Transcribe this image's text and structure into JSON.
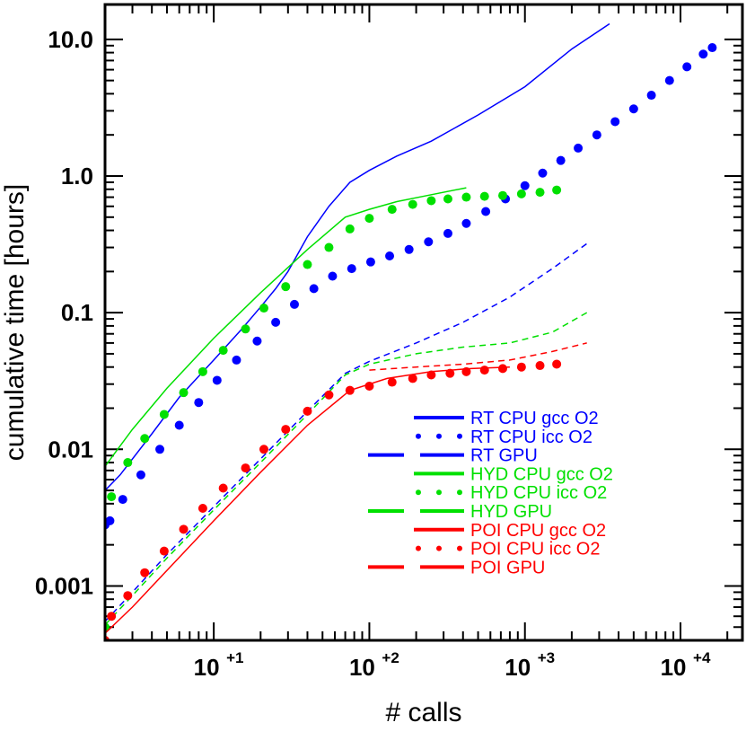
{
  "chart_data": {
    "type": "line",
    "title": "",
    "xlabel": "# calls",
    "ylabel": "cumulative time [hours]",
    "xscale": "log",
    "yscale": "log",
    "xlim": [
      2,
      25000
    ],
    "ylim": [
      0.0004,
      18
    ],
    "x_ticks": [
      {
        "value": 10,
        "label": "10",
        "exp": "+1"
      },
      {
        "value": 100,
        "label": "10",
        "exp": "+2"
      },
      {
        "value": 1000,
        "label": "10",
        "exp": "+3"
      },
      {
        "value": 10000,
        "label": "10",
        "exp": "+4"
      }
    ],
    "y_ticks": [
      {
        "value": 0.001,
        "label": "0.001"
      },
      {
        "value": 0.01,
        "label": "0.01"
      },
      {
        "value": 0.1,
        "label": "0.1"
      },
      {
        "value": 1,
        "label": "1.0"
      },
      {
        "value": 10,
        "label": "10.0"
      }
    ],
    "legend_position": "bottom-right",
    "colors": {
      "RT": "#0000ff",
      "HYD": "#00e000",
      "POI": "#ff0000"
    },
    "series": [
      {
        "name": "RT CPU gcc O2",
        "color": "#0000ff",
        "style": "solid",
        "x": [
          2,
          2.5,
          4,
          6,
          10,
          15,
          20,
          25,
          30,
          40,
          55,
          75,
          100,
          150,
          250,
          500,
          1000,
          2000,
          3500
        ],
        "y": [
          0.005,
          0.0065,
          0.013,
          0.024,
          0.045,
          0.075,
          0.11,
          0.15,
          0.2,
          0.36,
          0.6,
          0.9,
          1.1,
          1.4,
          1.8,
          2.8,
          4.5,
          8.5,
          13
        ]
      },
      {
        "name": "RT CPU icc O2",
        "color": "#0000ff",
        "style": "dotted",
        "x": [
          2,
          2.15,
          2.6,
          3.4,
          4.5,
          6,
          8,
          10.5,
          14,
          19,
          25,
          33,
          44,
          58,
          77,
          102,
          135,
          180,
          240,
          320,
          420,
          560,
          750,
          1000,
          1300,
          1700,
          2200,
          2900,
          3800,
          5000,
          6500,
          8500,
          11000,
          14000,
          16000
        ],
        "y": [
          0.0028,
          0.003,
          0.0043,
          0.0065,
          0.01,
          0.015,
          0.022,
          0.032,
          0.045,
          0.062,
          0.085,
          0.115,
          0.15,
          0.185,
          0.21,
          0.235,
          0.26,
          0.29,
          0.33,
          0.38,
          0.45,
          0.55,
          0.68,
          0.85,
          1.05,
          1.3,
          1.6,
          2.0,
          2.5,
          3.1,
          3.9,
          5.0,
          6.3,
          7.8,
          8.7
        ]
      },
      {
        "name": "RT GPU",
        "color": "#0000ff",
        "style": "dashed",
        "x": [
          2,
          3,
          5,
          10,
          20,
          40,
          70,
          100,
          200,
          400,
          800,
          1500,
          2500
        ],
        "y": [
          0.00055,
          0.0009,
          0.0017,
          0.0038,
          0.0085,
          0.019,
          0.036,
          0.044,
          0.06,
          0.085,
          0.13,
          0.21,
          0.32
        ]
      },
      {
        "name": "HYD CPU gcc O2",
        "color": "#00e000",
        "style": "solid",
        "x": [
          2,
          3,
          5,
          10,
          20,
          40,
          70,
          100,
          150,
          250,
          420
        ],
        "y": [
          0.0075,
          0.014,
          0.028,
          0.065,
          0.14,
          0.29,
          0.5,
          0.57,
          0.65,
          0.73,
          0.82
        ]
      },
      {
        "name": "HYD CPU icc O2",
        "color": "#00e000",
        "style": "dotted",
        "x": [
          2,
          2.2,
          2.8,
          3.6,
          4.8,
          6.4,
          8.5,
          11.5,
          16,
          21,
          29,
          40,
          55,
          75,
          100,
          140,
          190,
          250,
          320,
          420,
          550,
          720,
          950,
          1250,
          1600
        ],
        "y": [
          0.0005,
          0.0045,
          0.008,
          0.012,
          0.018,
          0.026,
          0.037,
          0.053,
          0.076,
          0.108,
          0.155,
          0.225,
          0.3,
          0.41,
          0.49,
          0.57,
          0.62,
          0.66,
          0.68,
          0.7,
          0.71,
          0.72,
          0.74,
          0.76,
          0.79
        ]
      },
      {
        "name": "HYD GPU",
        "color": "#00e000",
        "style": "dashed",
        "x": [
          2,
          3,
          5,
          10,
          20,
          40,
          70,
          100,
          200,
          400,
          800,
          1500,
          2500
        ],
        "y": [
          0.00052,
          0.00085,
          0.0016,
          0.0036,
          0.008,
          0.018,
          0.035,
          0.042,
          0.05,
          0.056,
          0.06,
          0.072,
          0.1
        ]
      },
      {
        "name": "POI CPU gcc O2",
        "color": "#ff0000",
        "style": "solid",
        "x": [
          2,
          3,
          5,
          10,
          20,
          40,
          75,
          130,
          250,
          450,
          800
        ],
        "y": [
          0.00045,
          0.0007,
          0.0013,
          0.003,
          0.0068,
          0.015,
          0.027,
          0.033,
          0.037,
          0.039,
          0.04
        ]
      },
      {
        "name": "POI CPU icc O2",
        "color": "#ff0000",
        "style": "dotted",
        "x": [
          2,
          2.2,
          2.8,
          3.6,
          4.8,
          6.4,
          8.5,
          11.5,
          16,
          21,
          29,
          40,
          55,
          75,
          100,
          140,
          190,
          250,
          330,
          420,
          550,
          720,
          950,
          1250,
          1600
        ],
        "y": [
          0.0004,
          0.0006,
          0.00085,
          0.00125,
          0.0018,
          0.0026,
          0.0037,
          0.0052,
          0.0073,
          0.01,
          0.014,
          0.019,
          0.025,
          0.027,
          0.029,
          0.031,
          0.033,
          0.035,
          0.036,
          0.037,
          0.038,
          0.039,
          0.04,
          0.041,
          0.042
        ]
      },
      {
        "name": "POI GPU",
        "color": "#ff0000",
        "style": "dashed",
        "x": [
          100,
          200,
          400,
          800,
          1500,
          2500
        ],
        "y": [
          0.038,
          0.04,
          0.042,
          0.045,
          0.052,
          0.06
        ]
      }
    ]
  }
}
